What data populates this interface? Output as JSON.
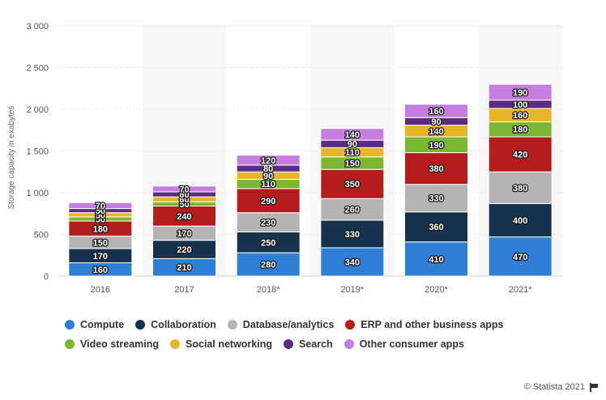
{
  "chart_data": {
    "type": "bar",
    "stacked": true,
    "title": "",
    "xlabel": "",
    "ylabel": "Storage capacity in exabytes",
    "ylim": [
      0,
      3000
    ],
    "yticks": [
      0,
      500,
      1000,
      1500,
      2000,
      2500,
      3000
    ],
    "ytick_labels": [
      "0",
      "500",
      "1 000",
      "1 500",
      "2 000",
      "2 500",
      "3 000"
    ],
    "grid": true,
    "legend_position": "bottom",
    "categories": [
      "2016",
      "2017",
      "2018*",
      "2019*",
      "2020*",
      "2021*"
    ],
    "series": [
      {
        "name": "Compute",
        "color": "#2f7ed8",
        "values": [
          160,
          210,
          280,
          340,
          410,
          470
        ]
      },
      {
        "name": "Collaboration",
        "color": "#17324e",
        "values": [
          170,
          220,
          250,
          330,
          360,
          400
        ]
      },
      {
        "name": "Database/analytics",
        "color": "#b4b4b4",
        "values": [
          150,
          170,
          230,
          260,
          330,
          380
        ]
      },
      {
        "name": "ERP and other business apps",
        "color": "#b51c1c",
        "values": [
          180,
          240,
          290,
          350,
          380,
          420
        ]
      },
      {
        "name": "Video streaming",
        "color": "#7cb82f",
        "values": [
          50,
          50,
          110,
          150,
          190,
          180
        ]
      },
      {
        "name": "Social networking",
        "color": "#e8b429",
        "values": [
          50,
          60,
          90,
          110,
          140,
          160
        ]
      },
      {
        "name": "Search",
        "color": "#5a2d82",
        "values": [
          50,
          60,
          80,
          90,
          90,
          100
        ]
      },
      {
        "name": "Other consumer apps",
        "color": "#c57ee0",
        "values": [
          70,
          70,
          120,
          140,
          160,
          190
        ]
      }
    ]
  },
  "legend": {
    "rows": [
      [
        "Compute",
        "Collaboration",
        "Database/analytics",
        "ERP and other business apps"
      ],
      [
        "Video streaming",
        "Social networking",
        "Search",
        "Other consumer apps"
      ]
    ]
  },
  "credit": {
    "text": "© Statista 2021",
    "icon": "flag-icon"
  }
}
